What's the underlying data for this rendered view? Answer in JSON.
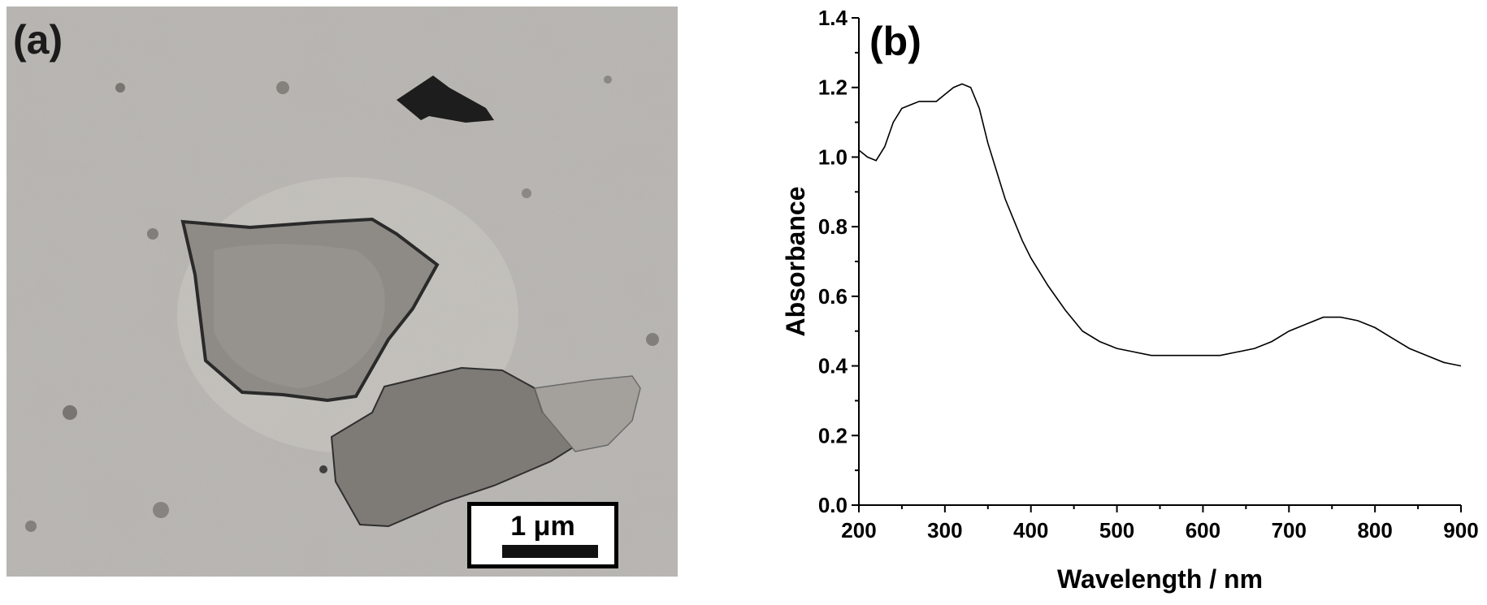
{
  "panel_a": {
    "label": "(a)",
    "scale_bar_text": "1 μm"
  },
  "panel_b": {
    "label": "(b)"
  },
  "chart_data": {
    "type": "line",
    "title": "",
    "xlabel": "Wavelength / nm",
    "ylabel": "Absorbance",
    "xlim": [
      200,
      900
    ],
    "ylim": [
      0.0,
      1.4
    ],
    "x_ticks": [
      200,
      300,
      400,
      500,
      600,
      700,
      800,
      900
    ],
    "y_ticks": [
      "0.0",
      "0.2",
      "0.4",
      "0.6",
      "0.8",
      "1.0",
      "1.2",
      "1.4"
    ],
    "grid": false,
    "series": [
      {
        "color": "#000000",
        "x": [
          200,
          210,
          220,
          230,
          240,
          250,
          260,
          270,
          280,
          290,
          300,
          310,
          320,
          330,
          340,
          350,
          360,
          370,
          380,
          390,
          400,
          420,
          440,
          460,
          480,
          500,
          520,
          540,
          560,
          580,
          600,
          620,
          640,
          660,
          680,
          700,
          720,
          740,
          760,
          780,
          800,
          820,
          840,
          860,
          880,
          900
        ],
        "y": [
          1.02,
          1.0,
          0.99,
          1.03,
          1.1,
          1.14,
          1.15,
          1.16,
          1.16,
          1.16,
          1.18,
          1.2,
          1.21,
          1.2,
          1.14,
          1.04,
          0.96,
          0.88,
          0.82,
          0.76,
          0.71,
          0.63,
          0.56,
          0.5,
          0.47,
          0.45,
          0.44,
          0.43,
          0.43,
          0.43,
          0.43,
          0.43,
          0.44,
          0.45,
          0.47,
          0.5,
          0.52,
          0.54,
          0.54,
          0.53,
          0.51,
          0.48,
          0.45,
          0.43,
          0.41,
          0.4
        ]
      }
    ]
  }
}
